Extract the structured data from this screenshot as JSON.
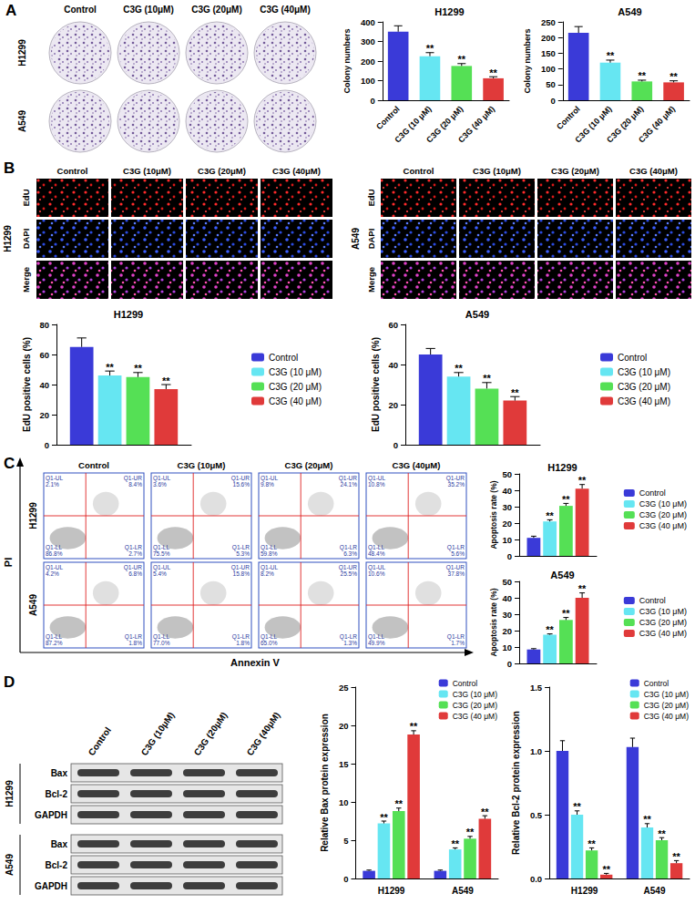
{
  "chart_data": [
    {
      "type": "bar",
      "title": "H1299",
      "y_label": "Colony numbers",
      "categories": [
        "Control",
        "C3G (10 μM)",
        "C3G (20 μM)",
        "C3G (40 μM)"
      ],
      "values": [
        350,
        225,
        175,
        112
      ],
      "errors": [
        30,
        18,
        12,
        8
      ],
      "significance": [
        null,
        "**",
        "**",
        "**"
      ],
      "colors": [
        "#3a3ad8",
        "#66e6f2",
        "#55e055",
        "#e03a3a"
      ],
      "ylim": [
        0,
        400
      ],
      "yticks": [
        0,
        100,
        200,
        300,
        400
      ],
      "grid": false
    },
    {
      "type": "bar",
      "title": "A549",
      "y_label": "Colony numbers",
      "categories": [
        "Control",
        "C3G (10 μM)",
        "C3G (20 μM)",
        "C3G (40 μM)"
      ],
      "values": [
        215,
        120,
        60,
        57
      ],
      "errors": [
        20,
        8,
        4,
        5
      ],
      "significance": [
        null,
        "**",
        "**",
        "**"
      ],
      "colors": [
        "#3a3ad8",
        "#66e6f2",
        "#55e055",
        "#e03a3a"
      ],
      "ylim": [
        0,
        250
      ],
      "yticks": [
        0,
        50,
        100,
        150,
        200,
        250
      ],
      "grid": false
    },
    {
      "type": "bar",
      "title": "H1299",
      "y_label": "EdU positive cells (%)",
      "categories": [
        null
      ],
      "series": [
        {
          "name": "Control",
          "color": "#3a3ad8",
          "values": [
            65
          ],
          "errors": [
            6
          ],
          "significance": [
            null
          ]
        },
        {
          "name": "C3G (10 μM)",
          "color": "#66e6f2",
          "values": [
            46
          ],
          "errors": [
            3
          ],
          "significance": [
            "**"
          ]
        },
        {
          "name": "C3G (20 μM)",
          "color": "#55e055",
          "values": [
            45
          ],
          "errors": [
            3
          ],
          "significance": [
            "**"
          ]
        },
        {
          "name": "C3G (40 μM)",
          "color": "#e03a3a",
          "values": [
            37
          ],
          "errors": [
            3
          ],
          "significance": [
            "**"
          ]
        }
      ],
      "ylim": [
        0,
        80
      ],
      "yticks": [
        0,
        20,
        40,
        60,
        80
      ],
      "grid": false,
      "legend": "right"
    },
    {
      "type": "bar",
      "title": "A549",
      "y_label": "EdU positive cells (%)",
      "categories": [
        null
      ],
      "series": [
        {
          "name": "Control",
          "color": "#3a3ad8",
          "values": [
            45
          ],
          "errors": [
            3
          ],
          "significance": [
            null
          ]
        },
        {
          "name": "C3G (10 μM)",
          "color": "#66e6f2",
          "values": [
            34
          ],
          "errors": [
            2
          ],
          "significance": [
            "**"
          ]
        },
        {
          "name": "C3G (20 μM)",
          "color": "#55e055",
          "values": [
            28
          ],
          "errors": [
            3
          ],
          "significance": [
            "**"
          ]
        },
        {
          "name": "C3G (40 μM)",
          "color": "#e03a3a",
          "values": [
            22
          ],
          "errors": [
            2
          ],
          "significance": [
            "**"
          ]
        }
      ],
      "ylim": [
        0,
        60
      ],
      "yticks": [
        0,
        20,
        40,
        60
      ],
      "grid": false,
      "legend": "right"
    },
    {
      "type": "bar",
      "title": "H1299",
      "y_label": "Apoptosis rate (%)",
      "categories": [
        null
      ],
      "series": [
        {
          "name": "Control",
          "color": "#3a3ad8",
          "values": [
            11
          ],
          "errors": [
            1
          ],
          "significance": [
            null
          ]
        },
        {
          "name": "C3G (10 μM)",
          "color": "#66e6f2",
          "values": [
            21
          ],
          "errors": [
            1
          ],
          "significance": [
            "**"
          ]
        },
        {
          "name": "C3G (20 μM)",
          "color": "#55e055",
          "values": [
            30.5
          ],
          "errors": [
            1.5
          ],
          "significance": [
            "**"
          ]
        },
        {
          "name": "C3G (40 μM)",
          "color": "#e03a3a",
          "values": [
            41
          ],
          "errors": [
            2.5
          ],
          "significance": [
            "**"
          ]
        }
      ],
      "ylim": [
        0,
        50
      ],
      "yticks": [
        0,
        10,
        20,
        30,
        40,
        50
      ],
      "grid": false,
      "legend": "right"
    },
    {
      "type": "bar",
      "title": "A549",
      "y_label": "Apoptosis rate (%)",
      "categories": [
        null
      ],
      "series": [
        {
          "name": "Control",
          "color": "#3a3ad8",
          "values": [
            8.5
          ],
          "errors": [
            0.5
          ],
          "significance": [
            null
          ]
        },
        {
          "name": "C3G (10 μM)",
          "color": "#66e6f2",
          "values": [
            17.5
          ],
          "errors": [
            0.5
          ],
          "significance": [
            "**"
          ]
        },
        {
          "name": "C3G (20 μM)",
          "color": "#55e055",
          "values": [
            26.5
          ],
          "errors": [
            1.5
          ],
          "significance": [
            "**"
          ]
        },
        {
          "name": "C3G (40 μM)",
          "color": "#e03a3a",
          "values": [
            40
          ],
          "errors": [
            3
          ],
          "significance": [
            "**"
          ]
        }
      ],
      "ylim": [
        0,
        50
      ],
      "yticks": [
        0,
        10,
        20,
        30,
        40,
        50
      ],
      "grid": false,
      "legend": "right"
    },
    {
      "type": "bar",
      "y_label": "Relative Bax protein expression",
      "categories": [
        "H1299",
        "A549"
      ],
      "series": [
        {
          "name": "Control",
          "color": "#3a3ad8",
          "values": [
            1,
            1
          ],
          "errors": [
            0.1,
            0.1
          ],
          "significance": [
            null,
            null
          ]
        },
        {
          "name": "C3G (10 μM)",
          "color": "#66e6f2",
          "values": [
            7.2,
            3.8
          ],
          "errors": [
            0.3,
            0.2
          ],
          "significance": [
            "**",
            "**"
          ]
        },
        {
          "name": "C3G (20 μM)",
          "color": "#55e055",
          "values": [
            8.8,
            5.2
          ],
          "errors": [
            0.4,
            0.3
          ],
          "significance": [
            "**",
            "**"
          ]
        },
        {
          "name": "C3G (40 μM)",
          "color": "#e03a3a",
          "values": [
            18.8,
            7.8
          ],
          "errors": [
            0.5,
            0.4
          ],
          "significance": [
            "**",
            "**"
          ]
        }
      ],
      "ylim": [
        0,
        25
      ],
      "yticks": [
        0,
        5,
        10,
        15,
        20,
        25
      ],
      "grid": false,
      "legend": "upper-right"
    },
    {
      "type": "bar",
      "y_label": "Relative Bcl-2 protein expression",
      "categories": [
        "H1299",
        "A549"
      ],
      "series": [
        {
          "name": "Control",
          "color": "#3a3ad8",
          "values": [
            1.0,
            1.03
          ],
          "errors": [
            0.08,
            0.07
          ],
          "significance": [
            null,
            null
          ]
        },
        {
          "name": "C3G (10 μM)",
          "color": "#66e6f2",
          "values": [
            0.5,
            0.4
          ],
          "errors": [
            0.03,
            0.03
          ],
          "significance": [
            "**",
            "**"
          ]
        },
        {
          "name": "C3G (20 μM)",
          "color": "#55e055",
          "values": [
            0.22,
            0.3
          ],
          "errors": [
            0.02,
            0.02
          ],
          "significance": [
            "**",
            "**"
          ]
        },
        {
          "name": "C3G (40 μM)",
          "color": "#e03a3a",
          "values": [
            0.03,
            0.12
          ],
          "errors": [
            0.01,
            0.02
          ],
          "significance": [
            "**",
            "**"
          ]
        }
      ],
      "ylim": [
        0,
        1.5
      ],
      "yticks": [
        {
          "value": 0,
          "label": "0.0"
        },
        {
          "value": 0.5,
          "label": "0.5"
        },
        {
          "value": 1,
          "label": "1.0"
        },
        {
          "value": 1.5,
          "label": "1.5"
        }
      ],
      "grid": false,
      "legend": "upper-right"
    }
  ],
  "colony": {
    "label": "A",
    "columns": [
      "Control",
      "C3G (10μM)",
      "C3G (20μM)",
      "C3G (40μM)"
    ],
    "rows": [
      "H1299",
      "A549"
    ]
  },
  "edu": {
    "label": "B",
    "columns": [
      "Control",
      "C3G (10μM)",
      "C3G (20μM)",
      "C3G (40μM)"
    ],
    "panels": [
      {
        "cell": "H1299",
        "rows": [
          "EdU",
          "DAPI",
          "Merge"
        ]
      },
      {
        "cell": "A549",
        "rows": [
          "EdU",
          "DAPI",
          "Merge"
        ]
      }
    ]
  },
  "flow": {
    "label": "C",
    "columns": [
      "Control",
      "C3G (10μM)",
      "C3G (20μM)",
      "C3G (40μM)"
    ],
    "y_label": "PI",
    "x_label": "Annexin V",
    "quadrant_names": {
      "UL": "Q1-UL",
      "UR": "Q1-UR",
      "LL": "Q1-LL",
      "LR": "Q1-LR"
    },
    "rows": [
      {
        "cell": "H1299",
        "quadrants": [
          {
            "UL": "2.1%",
            "UR": "8.4%",
            "LL": "86.8%",
            "LR": "2.7%"
          },
          {
            "UL": "3.6%",
            "UR": "15.6%",
            "LL": "75.5%",
            "LR": "5.3%"
          },
          {
            "UL": "9.8%",
            "UR": "24.1%",
            "LL": "59.8%",
            "LR": "6.3%"
          },
          {
            "UL": "10.8%",
            "UR": "35.2%",
            "LL": "48.4%",
            "LR": "5.6%"
          }
        ]
      },
      {
        "cell": "A549",
        "quadrants": [
          {
            "UL": "4.2%",
            "UR": "6.8%",
            "LL": "87.2%",
            "LR": "1.8%"
          },
          {
            "UL": "5.4%",
            "UR": "15.8%",
            "LL": "77.0%",
            "LR": "1.8%"
          },
          {
            "UL": "8.2%",
            "UR": "25.5%",
            "LL": "65.0%",
            "LR": "1.3%"
          },
          {
            "UL": "10.6%",
            "UR": "37.8%",
            "LL": "49.9%",
            "LR": "1.7%"
          }
        ]
      }
    ]
  },
  "blot": {
    "label": "D",
    "columns": [
      "Control",
      "C3G (10μM)",
      "C3G (20μM)",
      "C3G (40μM)"
    ],
    "groups": [
      {
        "cell": "H1299",
        "proteins": [
          "Bax",
          "Bcl-2",
          "GAPDH"
        ]
      },
      {
        "cell": "A549",
        "proteins": [
          "Bax",
          "Bcl-2",
          "GAPDH"
        ]
      }
    ]
  }
}
